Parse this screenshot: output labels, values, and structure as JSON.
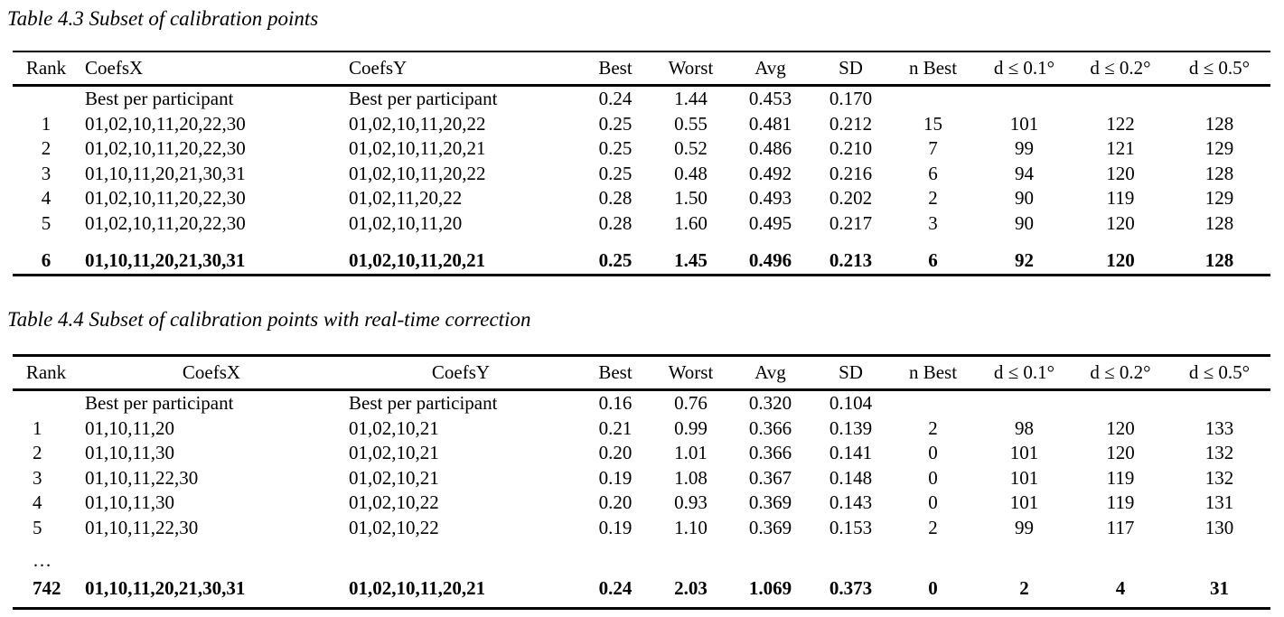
{
  "colors": {
    "background": "#ffffff",
    "text": "#000000",
    "rule": "#000000"
  },
  "tables": [
    {
      "title": "Table 4.3 Subset of calibration points",
      "columns": [
        "Rank",
        "CoefsX",
        "CoefsY",
        "Best",
        "Worst",
        "Avg",
        "SD",
        "n Best",
        "d ≤ 0.1°",
        "d ≤ 0.2°",
        "d ≤ 0.5°"
      ],
      "rows": [
        {
          "cells": [
            "",
            "Best per participant",
            "Best per participant",
            "0.24",
            "1.44",
            "0.453",
            "0.170",
            "",
            "",
            "",
            ""
          ]
        },
        {
          "cells": [
            "1",
            "01,02,10,11,20,22,30",
            "01,02,10,11,20,22",
            "0.25",
            "0.55",
            "0.481",
            "0.212",
            "15",
            "101",
            "122",
            "128"
          ]
        },
        {
          "cells": [
            "2",
            "01,02,10,11,20,22,30",
            "01,02,10,11,20,21",
            "0.25",
            "0.52",
            "0.486",
            "0.210",
            "7",
            "99",
            "121",
            "129"
          ]
        },
        {
          "cells": [
            "3",
            "01,10,11,20,21,30,31",
            "01,02,10,11,20,22",
            "0.25",
            "0.48",
            "0.492",
            "0.216",
            "6",
            "94",
            "120",
            "128"
          ]
        },
        {
          "cells": [
            "4",
            "01,02,10,11,20,22,30",
            "01,02,11,20,22",
            "0.28",
            "1.50",
            "0.493",
            "0.202",
            "2",
            "90",
            "119",
            "129"
          ]
        },
        {
          "cells": [
            "5",
            "01,02,10,11,20,22,30",
            "01,02,10,11,20",
            "0.28",
            "1.60",
            "0.495",
            "0.217",
            "3",
            "90",
            "120",
            "128"
          ]
        },
        {
          "cells": [
            "6",
            "01,10,11,20,21,30,31",
            "01,02,10,11,20,21",
            "0.25",
            "1.45",
            "0.496",
            "0.213",
            "6",
            "92",
            "120",
            "128"
          ],
          "bold": true,
          "spaced": true
        }
      ]
    },
    {
      "title": "Table 4.4 Subset of calibration points with real-time correction",
      "columns": [
        "Rank",
        "CoefsX",
        "CoefsY",
        "Best",
        "Worst",
        "Avg",
        "SD",
        "n Best",
        "d ≤ 0.1°",
        "d ≤ 0.2°",
        "d ≤ 0.5°"
      ],
      "rows": [
        {
          "cells": [
            "",
            "Best per participant",
            "Best per participant",
            "0.16",
            "0.76",
            "0.320",
            "0.104",
            "",
            "",
            "",
            ""
          ]
        },
        {
          "cells": [
            "1",
            "01,10,11,20",
            "01,02,10,21",
            "0.21",
            "0.99",
            "0.366",
            "0.139",
            "2",
            "98",
            "120",
            "133"
          ]
        },
        {
          "cells": [
            "2",
            "01,10,11,30",
            "01,02,10,21",
            "0.20",
            "1.01",
            "0.366",
            "0.141",
            "0",
            "101",
            "120",
            "132"
          ]
        },
        {
          "cells": [
            "3",
            "01,10,11,22,30",
            "01,02,10,21",
            "0.19",
            "1.08",
            "0.367",
            "0.148",
            "0",
            "101",
            "119",
            "132"
          ]
        },
        {
          "cells": [
            "4",
            "01,10,11,30",
            "01,02,10,22",
            "0.20",
            "0.93",
            "0.369",
            "0.143",
            "0",
            "101",
            "119",
            "131"
          ]
        },
        {
          "cells": [
            "5",
            "01,10,11,22,30",
            "01,02,10,22",
            "0.19",
            "1.10",
            "0.369",
            "0.153",
            "2",
            "99",
            "117",
            "130"
          ]
        },
        {
          "cells": [
            "…",
            "",
            "",
            "",
            "",
            "",
            "",
            "",
            "",
            "",
            ""
          ],
          "ellipsis": true
        },
        {
          "cells": [
            "742",
            "01,10,11,20,21,30,31",
            "01,02,10,11,20,21",
            "0.24",
            "2.03",
            "1.069",
            "0.373",
            "0",
            "2",
            "4",
            "31"
          ],
          "bold": true,
          "last": true
        }
      ]
    }
  ]
}
